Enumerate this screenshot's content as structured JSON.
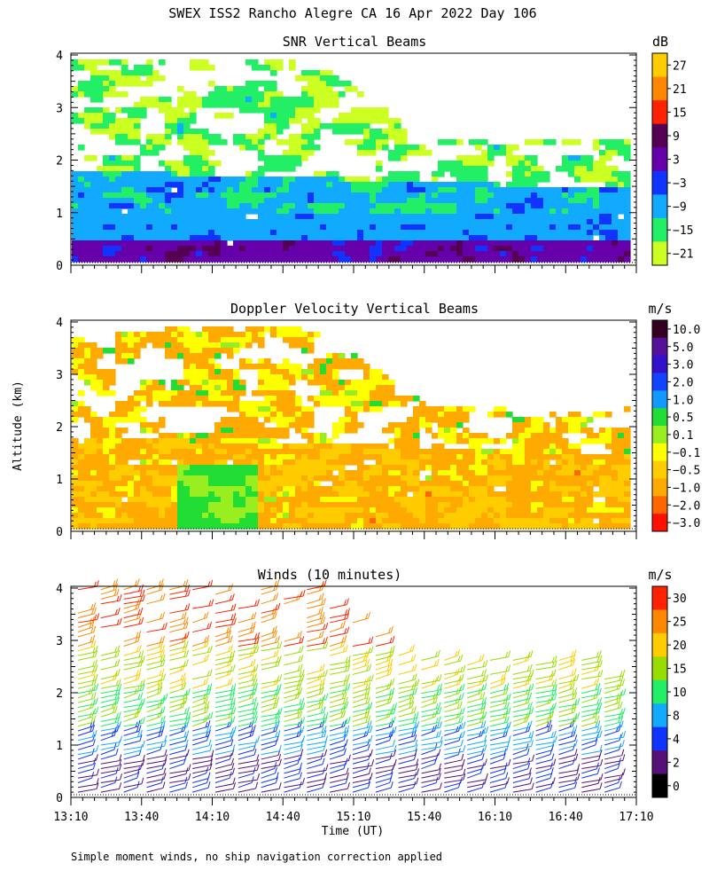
{
  "title": "SWEX ISS2 Rancho Alegre CA  16 Apr 2022 Day 106",
  "ylabel": "Altitude (km)",
  "xlabel": "Time (UT)",
  "footnote": "Simple moment winds, no ship navigation correction applied",
  "x_ticks": [
    "13:10",
    "13:40",
    "14:10",
    "14:40",
    "15:10",
    "15:40",
    "16:10",
    "16:40",
    "17:10"
  ],
  "y_ticks": [
    "0",
    "1",
    "2",
    "3",
    "4"
  ],
  "chart_data": [
    {
      "type": "heatmap",
      "title": "SNR Vertical Beams",
      "unit": "dB",
      "xlim": [
        "13:10",
        "17:10"
      ],
      "ylim": [
        0,
        4
      ],
      "colorbar": {
        "labels": [
          "27",
          "21",
          "15",
          "9",
          "3",
          "−3",
          "−9",
          "−15",
          "−21"
        ],
        "colors": [
          "#ffcc00",
          "#ff8800",
          "#ff2200",
          "#550055",
          "#6600aa",
          "#1133ff",
          "#11aaff",
          "#22ee66",
          "#ccff22"
        ]
      }
    },
    {
      "type": "heatmap",
      "title": "Doppler Velocity Vertical Beams",
      "unit": "m/s",
      "xlim": [
        "13:10",
        "17:10"
      ],
      "ylim": [
        0,
        4
      ],
      "colorbar": {
        "labels": [
          "10.0",
          "5.0",
          "3.0",
          "2.0",
          "1.0",
          "0.5",
          "0.1",
          "−0.1",
          "−0.5",
          "−1.0",
          "−2.0",
          "−3.0"
        ],
        "colors": [
          "#330022",
          "#551199",
          "#3311cc",
          "#1144ff",
          "#1199ff",
          "#22dd33",
          "#99ee22",
          "#ffff00",
          "#ffcc00",
          "#ffaa00",
          "#ff6600",
          "#ff1100"
        ]
      }
    },
    {
      "type": "wind_barbs",
      "title": "Winds (10 minutes)",
      "unit": "m/s",
      "xlim": [
        "13:10",
        "17:10"
      ],
      "ylim": [
        0,
        4
      ],
      "colorbar": {
        "labels": [
          "30",
          "25",
          "20",
          "15",
          "10",
          "8",
          "4",
          "2",
          "0"
        ],
        "colors": [
          "#ff2200",
          "#ff8800",
          "#ffcc00",
          "#99dd00",
          "#22ee66",
          "#11aaff",
          "#1133ff",
          "#551177",
          "#000000"
        ]
      }
    }
  ]
}
